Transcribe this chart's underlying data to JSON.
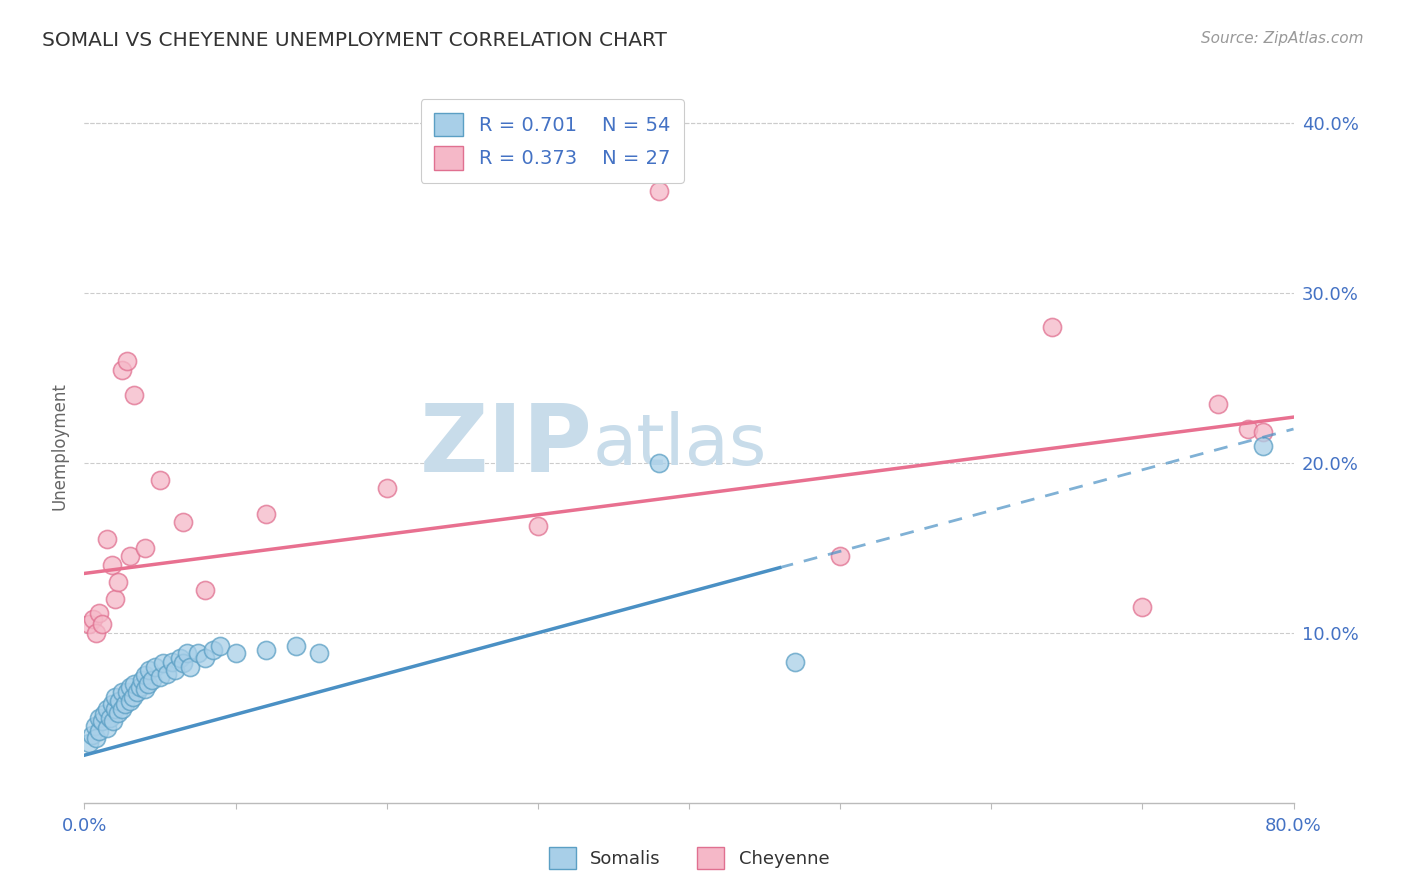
{
  "title": "SOMALI VS CHEYENNE UNEMPLOYMENT CORRELATION CHART",
  "source": "Source: ZipAtlas.com",
  "ylabel": "Unemployment",
  "xlim": [
    0.0,
    0.8
  ],
  "ylim": [
    0.0,
    0.42
  ],
  "yticks": [
    0.1,
    0.2,
    0.3,
    0.4
  ],
  "ytick_labels": [
    "10.0%",
    "20.0%",
    "30.0%",
    "40.0%"
  ],
  "xticks": [
    0.0,
    0.1,
    0.2,
    0.3,
    0.4,
    0.5,
    0.6,
    0.7,
    0.8
  ],
  "somali_x": [
    0.003,
    0.005,
    0.007,
    0.008,
    0.01,
    0.01,
    0.012,
    0.013,
    0.015,
    0.015,
    0.017,
    0.018,
    0.019,
    0.02,
    0.02,
    0.022,
    0.023,
    0.025,
    0.025,
    0.027,
    0.028,
    0.03,
    0.03,
    0.032,
    0.033,
    0.035,
    0.037,
    0.038,
    0.04,
    0.04,
    0.042,
    0.043,
    0.045,
    0.047,
    0.05,
    0.052,
    0.055,
    0.058,
    0.06,
    0.063,
    0.065,
    0.068,
    0.07,
    0.075,
    0.08,
    0.085,
    0.09,
    0.1,
    0.12,
    0.14,
    0.155,
    0.38,
    0.47,
    0.78
  ],
  "somali_y": [
    0.035,
    0.04,
    0.045,
    0.038,
    0.042,
    0.05,
    0.048,
    0.052,
    0.044,
    0.055,
    0.05,
    0.058,
    0.048,
    0.055,
    0.062,
    0.053,
    0.06,
    0.055,
    0.065,
    0.058,
    0.065,
    0.06,
    0.068,
    0.062,
    0.07,
    0.065,
    0.068,
    0.072,
    0.067,
    0.075,
    0.07,
    0.078,
    0.072,
    0.08,
    0.074,
    0.082,
    0.076,
    0.083,
    0.078,
    0.085,
    0.082,
    0.088,
    0.08,
    0.088,
    0.085,
    0.09,
    0.092,
    0.088,
    0.09,
    0.092,
    0.088,
    0.2,
    0.083,
    0.21
  ],
  "cheyenne_x": [
    0.003,
    0.006,
    0.008,
    0.01,
    0.012,
    0.015,
    0.018,
    0.02,
    0.022,
    0.025,
    0.028,
    0.03,
    0.033,
    0.04,
    0.05,
    0.065,
    0.08,
    0.12,
    0.2,
    0.3,
    0.38,
    0.5,
    0.64,
    0.7,
    0.75,
    0.77,
    0.78
  ],
  "cheyenne_y": [
    0.105,
    0.108,
    0.1,
    0.112,
    0.105,
    0.155,
    0.14,
    0.12,
    0.13,
    0.255,
    0.26,
    0.145,
    0.24,
    0.15,
    0.19,
    0.165,
    0.125,
    0.17,
    0.185,
    0.163,
    0.36,
    0.145,
    0.28,
    0.115,
    0.235,
    0.22,
    0.218
  ],
  "somali_face": "#a8cfe8",
  "somali_edge": "#5b9fc4",
  "cheyenne_face": "#f5b8c8",
  "cheyenne_edge": "#e07090",
  "somali_line": "#4a90c4",
  "cheyenne_line": "#e87090",
  "somali_line_solid_end": 0.46,
  "R_somali": 0.701,
  "N_somali": 54,
  "R_cheyenne": 0.373,
  "N_cheyenne": 27,
  "legend_color": "#4472c4",
  "watermark": "ZIPAtlas",
  "watermark_color": "#d0e4f0",
  "bg_color": "#ffffff",
  "grid_color": "#cccccc",
  "title_color": "#333333",
  "axis_label_color": "#666666",
  "tick_color": "#4472c4"
}
